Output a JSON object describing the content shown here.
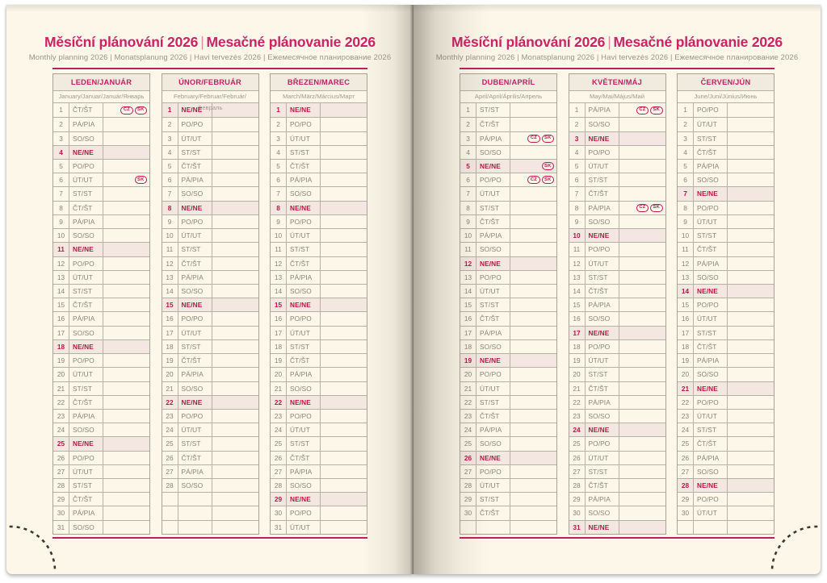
{
  "header": {
    "title_cz": "Měsíční plánování 2026",
    "title_separator": "|",
    "title_sk": "Mesačné plánovanie 2026",
    "subtitle": "Monthly planning 2026 | Monatsplanung 2026 | Havi tervezés 2026 | Ежемесячное планирование 2026"
  },
  "colors": {
    "accent_magenta": "#cb2366",
    "rule_pink": "#c01d5e",
    "sunday_red": "#bc1740",
    "sunday_row_bg": "#f4e7e2",
    "page_cream": "#fcf7e9",
    "table_border": "#b7b1a3",
    "badge_crimson": "#c31753"
  },
  "badge_labels": [
    "CZ",
    "SK"
  ],
  "months": [
    {
      "page": "left",
      "header": "LEDEN/JANUÁR",
      "languages": "January/Januar/Január/Январь",
      "days": [
        [
          1,
          "ČT/ŠT",
          [
            "CZ",
            "SK"
          ]
        ],
        [
          2,
          "PÁ/PIA"
        ],
        [
          3,
          "SO/SO"
        ],
        [
          4,
          "NE/NE"
        ],
        [
          5,
          "PO/PO"
        ],
        [
          6,
          "ÚT/UT",
          [
            "SK"
          ]
        ],
        [
          7,
          "ST/ST"
        ],
        [
          8,
          "ČT/ŠT"
        ],
        [
          9,
          "PÁ/PIA"
        ],
        [
          10,
          "SO/SO"
        ],
        [
          11,
          "NE/NE"
        ],
        [
          12,
          "PO/PO"
        ],
        [
          13,
          "ÚT/UT"
        ],
        [
          14,
          "ST/ST"
        ],
        [
          15,
          "ČT/ŠT"
        ],
        [
          16,
          "PÁ/PIA"
        ],
        [
          17,
          "SO/SO"
        ],
        [
          18,
          "NE/NE"
        ],
        [
          19,
          "PO/PO"
        ],
        [
          20,
          "ÚT/UT"
        ],
        [
          21,
          "ST/ST"
        ],
        [
          22,
          "ČT/ŠT"
        ],
        [
          23,
          "PÁ/PIA"
        ],
        [
          24,
          "SO/SO"
        ],
        [
          25,
          "NE/NE"
        ],
        [
          26,
          "PO/PO"
        ],
        [
          27,
          "ÚT/UT"
        ],
        [
          28,
          "ST/ST"
        ],
        [
          29,
          "ČT/ŠT"
        ],
        [
          30,
          "PÁ/PIA"
        ],
        [
          31,
          "SO/SO"
        ]
      ]
    },
    {
      "page": "left",
      "header": "ÚNOR/FEBRUÁR",
      "languages": "February/Februar/Február/Февраль",
      "days": [
        [
          1,
          "NE/NE"
        ],
        [
          2,
          "PO/PO"
        ],
        [
          3,
          "ÚT/UT"
        ],
        [
          4,
          "ST/ST"
        ],
        [
          5,
          "ČT/ŠT"
        ],
        [
          6,
          "PÁ/PIA"
        ],
        [
          7,
          "SO/SO"
        ],
        [
          8,
          "NE/NE"
        ],
        [
          9,
          "PO/PO"
        ],
        [
          10,
          "ÚT/UT"
        ],
        [
          11,
          "ST/ST"
        ],
        [
          12,
          "ČT/ŠT"
        ],
        [
          13,
          "PÁ/PIA"
        ],
        [
          14,
          "SO/SO"
        ],
        [
          15,
          "NE/NE"
        ],
        [
          16,
          "PO/PO"
        ],
        [
          17,
          "ÚT/UT"
        ],
        [
          18,
          "ST/ST"
        ],
        [
          19,
          "ČT/ŠT"
        ],
        [
          20,
          "PÁ/PIA"
        ],
        [
          21,
          "SO/SO"
        ],
        [
          22,
          "NE/NE"
        ],
        [
          23,
          "PO/PO"
        ],
        [
          24,
          "ÚT/UT"
        ],
        [
          25,
          "ST/ST"
        ],
        [
          26,
          "ČT/ŠT"
        ],
        [
          27,
          "PÁ/PIA"
        ],
        [
          28,
          "SO/SO"
        ]
      ]
    },
    {
      "page": "left",
      "header": "BŘEZEN/MAREC",
      "languages": "March/März/Március/Март",
      "days": [
        [
          1,
          "NE/NE"
        ],
        [
          2,
          "PO/PO"
        ],
        [
          3,
          "ÚT/UT"
        ],
        [
          4,
          "ST/ST"
        ],
        [
          5,
          "ČT/ŠT"
        ],
        [
          6,
          "PÁ/PIA"
        ],
        [
          7,
          "SO/SO"
        ],
        [
          8,
          "NE/NE"
        ],
        [
          9,
          "PO/PO"
        ],
        [
          10,
          "ÚT/UT"
        ],
        [
          11,
          "ST/ST"
        ],
        [
          12,
          "ČT/ŠT"
        ],
        [
          13,
          "PÁ/PIA"
        ],
        [
          14,
          "SO/SO"
        ],
        [
          15,
          "NE/NE"
        ],
        [
          16,
          "PO/PO"
        ],
        [
          17,
          "ÚT/UT"
        ],
        [
          18,
          "ST/ST"
        ],
        [
          19,
          "ČT/ŠT"
        ],
        [
          20,
          "PÁ/PIA"
        ],
        [
          21,
          "SO/SO"
        ],
        [
          22,
          "NE/NE"
        ],
        [
          23,
          "PO/PO"
        ],
        [
          24,
          "ÚT/UT"
        ],
        [
          25,
          "ST/ST"
        ],
        [
          26,
          "ČT/ŠT"
        ],
        [
          27,
          "PÁ/PIA"
        ],
        [
          28,
          "SO/SO"
        ],
        [
          29,
          "NE/NE"
        ],
        [
          30,
          "PO/PO"
        ],
        [
          31,
          "ÚT/UT"
        ]
      ]
    },
    {
      "page": "right",
      "header": "DUBEN/APRÍL",
      "languages": "April/April/Április/Апрель",
      "days": [
        [
          1,
          "ST/ST"
        ],
        [
          2,
          "ČT/ŠT"
        ],
        [
          3,
          "PÁ/PIA",
          [
            "CZ",
            "SK"
          ]
        ],
        [
          4,
          "SO/SO"
        ],
        [
          5,
          "NE/NE",
          [
            "SK"
          ]
        ],
        [
          6,
          "PO/PO",
          [
            "CZ",
            "SK"
          ]
        ],
        [
          7,
          "ÚT/UT"
        ],
        [
          8,
          "ST/ST"
        ],
        [
          9,
          "ČT/ŠT"
        ],
        [
          10,
          "PÁ/PIA"
        ],
        [
          11,
          "SO/SO"
        ],
        [
          12,
          "NE/NE"
        ],
        [
          13,
          "PO/PO"
        ],
        [
          14,
          "ÚT/UT"
        ],
        [
          15,
          "ST/ST"
        ],
        [
          16,
          "ČT/ŠT"
        ],
        [
          17,
          "PÁ/PIA"
        ],
        [
          18,
          "SO/SO"
        ],
        [
          19,
          "NE/NE"
        ],
        [
          20,
          "PO/PO"
        ],
        [
          21,
          "ÚT/UT"
        ],
        [
          22,
          "ST/ST"
        ],
        [
          23,
          "ČT/ŠT"
        ],
        [
          24,
          "PÁ/PIA"
        ],
        [
          25,
          "SO/SO"
        ],
        [
          26,
          "NE/NE"
        ],
        [
          27,
          "PO/PO"
        ],
        [
          28,
          "ÚT/UT"
        ],
        [
          29,
          "ST/ST"
        ],
        [
          30,
          "ČT/ŠT"
        ]
      ]
    },
    {
      "page": "right",
      "header": "KVĚTEN/MÁJ",
      "languages": "May/Mai/Május/Май",
      "days": [
        [
          1,
          "PÁ/PIA",
          [
            "CZ",
            "SK"
          ]
        ],
        [
          2,
          "SO/SO"
        ],
        [
          3,
          "NE/NE"
        ],
        [
          4,
          "PO/PO"
        ],
        [
          5,
          "ÚT/UT"
        ],
        [
          6,
          "ST/ST"
        ],
        [
          7,
          "ČT/ŠT"
        ],
        [
          8,
          "PÁ/PIA",
          [
            "CZ",
            "SK"
          ]
        ],
        [
          9,
          "SO/SO"
        ],
        [
          10,
          "NE/NE"
        ],
        [
          11,
          "PO/PO"
        ],
        [
          12,
          "ÚT/UT"
        ],
        [
          13,
          "ST/ST"
        ],
        [
          14,
          "ČT/ŠT"
        ],
        [
          15,
          "PÁ/PIA"
        ],
        [
          16,
          "SO/SO"
        ],
        [
          17,
          "NE/NE"
        ],
        [
          18,
          "PO/PO"
        ],
        [
          19,
          "ÚT/UT"
        ],
        [
          20,
          "ST/ST"
        ],
        [
          21,
          "ČT/ŠT"
        ],
        [
          22,
          "PÁ/PIA"
        ],
        [
          23,
          "SO/SO"
        ],
        [
          24,
          "NE/NE"
        ],
        [
          25,
          "PO/PO"
        ],
        [
          26,
          "ÚT/UT"
        ],
        [
          27,
          "ST/ST"
        ],
        [
          28,
          "ČT/ŠT"
        ],
        [
          29,
          "PÁ/PIA"
        ],
        [
          30,
          "SO/SO"
        ],
        [
          31,
          "NE/NE"
        ]
      ]
    },
    {
      "page": "right",
      "header": "ČERVEN/JÚN",
      "languages": "June/Juni/Június/Июнь",
      "days": [
        [
          1,
          "PO/PO"
        ],
        [
          2,
          "ÚT/UT"
        ],
        [
          3,
          "ST/ST"
        ],
        [
          4,
          "ČT/ŠT"
        ],
        [
          5,
          "PÁ/PIA"
        ],
        [
          6,
          "SO/SO"
        ],
        [
          7,
          "NE/NE"
        ],
        [
          8,
          "PO/PO"
        ],
        [
          9,
          "ÚT/UT"
        ],
        [
          10,
          "ST/ST"
        ],
        [
          11,
          "ČT/ŠT"
        ],
        [
          12,
          "PÁ/PIA"
        ],
        [
          13,
          "SO/SO"
        ],
        [
          14,
          "NE/NE"
        ],
        [
          15,
          "PO/PO"
        ],
        [
          16,
          "ÚT/UT"
        ],
        [
          17,
          "ST/ST"
        ],
        [
          18,
          "ČT/ŠT"
        ],
        [
          19,
          "PÁ/PIA"
        ],
        [
          20,
          "SO/SO"
        ],
        [
          21,
          "NE/NE"
        ],
        [
          22,
          "PO/PO"
        ],
        [
          23,
          "ÚT/UT"
        ],
        [
          24,
          "ST/ST"
        ],
        [
          25,
          "ČT/ŠT"
        ],
        [
          26,
          "PÁ/PIA"
        ],
        [
          27,
          "SO/SO"
        ],
        [
          28,
          "NE/NE"
        ],
        [
          29,
          "PO/PO"
        ],
        [
          30,
          "ÚT/UT"
        ]
      ]
    }
  ]
}
